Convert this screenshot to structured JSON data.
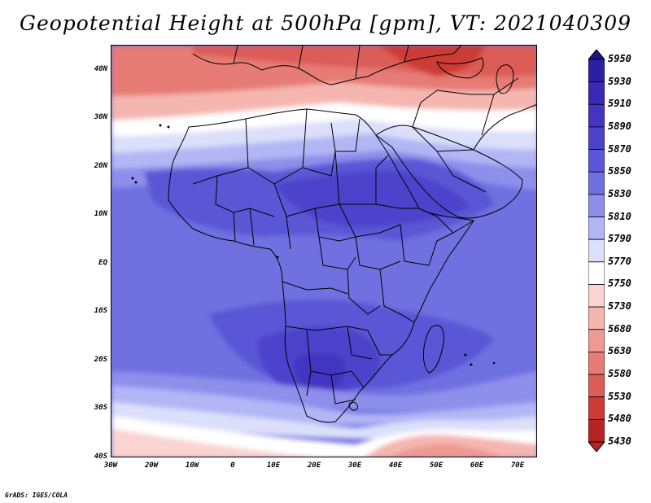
{
  "title": "Geopotential Height at 500hPa [gpm], VT: 2021040309",
  "credit": "GrADS: IGES/COLA",
  "map": {
    "lat_labels": [
      "40N",
      "30N",
      "20N",
      "10N",
      "EQ",
      "10S",
      "20S",
      "30S",
      "40S"
    ],
    "lon_labels": [
      "30W",
      "20W",
      "10W",
      "0",
      "10E",
      "20E",
      "30E",
      "40E",
      "50E",
      "60E",
      "70E"
    ],
    "lat_range": [
      -40,
      45
    ],
    "lon_range": [
      -30,
      75
    ]
  },
  "legend": {
    "levels": [
      "5950",
      "5930",
      "5910",
      "5890",
      "5870",
      "5850",
      "5830",
      "5810",
      "5790",
      "5770",
      "5750",
      "5730",
      "5680",
      "5630",
      "5580",
      "5530",
      "5480",
      "5430"
    ],
    "colors": [
      "#1e148c",
      "#2d1fa4",
      "#3929b4",
      "#4334c2",
      "#4d42cb",
      "#5a56d6",
      "#6f70e0",
      "#8d8feb",
      "#b2b6f5",
      "#dcdffa",
      "#ffffff",
      "#fad4d0",
      "#f5b6b0",
      "#ee9992",
      "#e67c75",
      "#dc5c56",
      "#cd3b36",
      "#b72424"
    ]
  }
}
